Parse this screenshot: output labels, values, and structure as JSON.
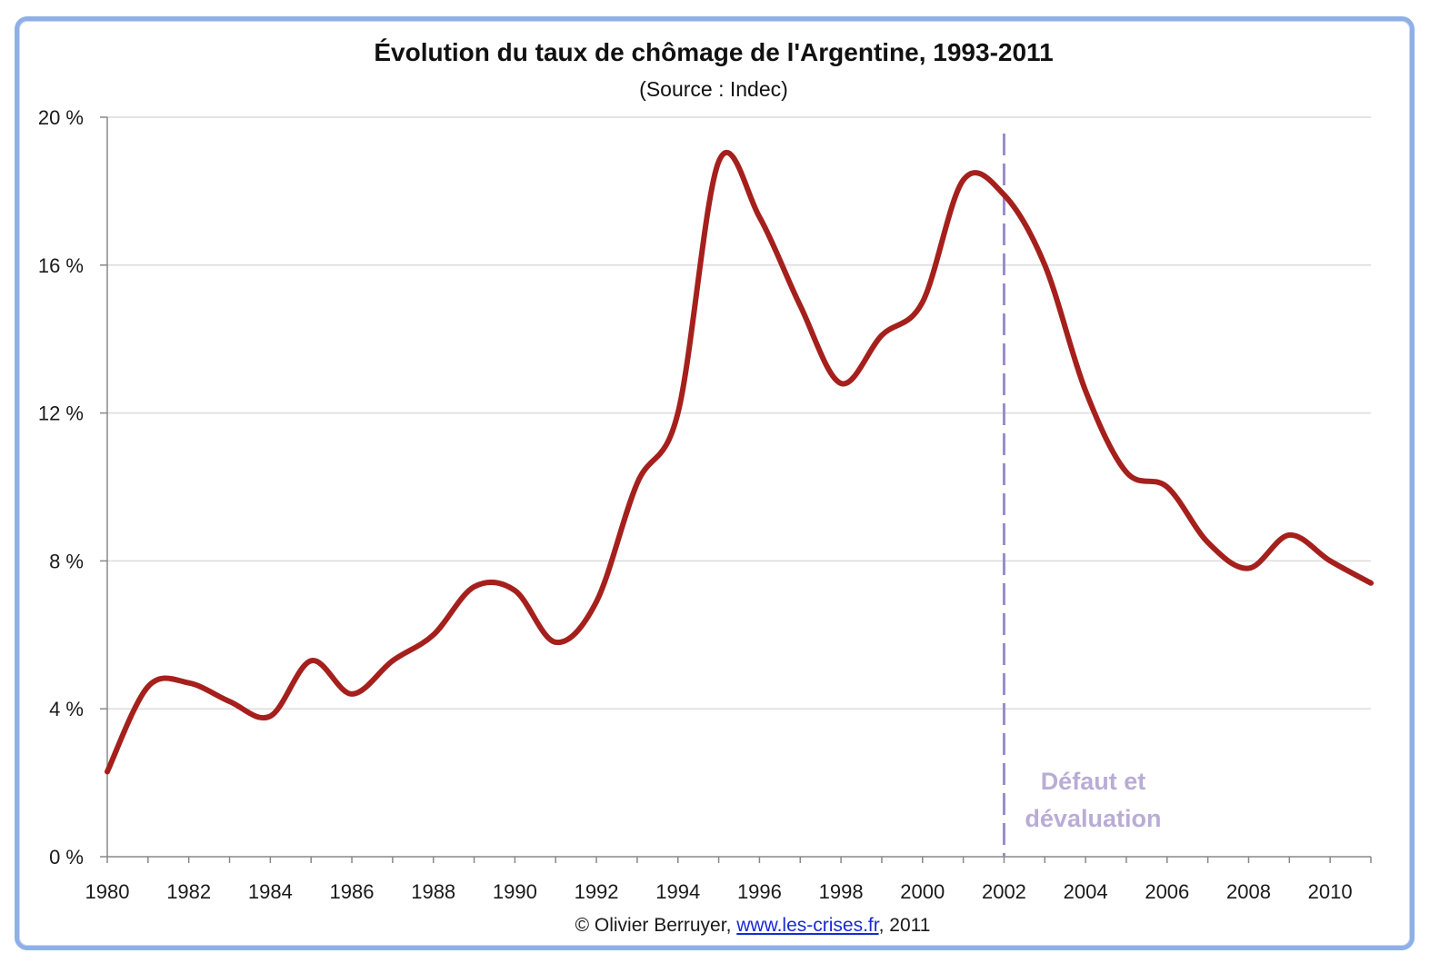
{
  "chart_data": {
    "type": "line",
    "title": "Évolution du taux de chômage de l'Argentine, 1993-2011",
    "subtitle": "(Source : Indec)",
    "xlabel": "",
    "ylabel": "",
    "xlim": [
      1980,
      2011
    ],
    "ylim": [
      0,
      20
    ],
    "x_ticks": [
      1980,
      1982,
      1984,
      1986,
      1988,
      1990,
      1992,
      1994,
      1996,
      1998,
      2000,
      2002,
      2004,
      2006,
      2008,
      2010
    ],
    "x_tick_labels": [
      "1980",
      "1982",
      "1984",
      "1986",
      "1988",
      "1990",
      "1992",
      "1994",
      "1996",
      "1998",
      "2000",
      "2002",
      "2004",
      "2006",
      "2008",
      "2010"
    ],
    "y_ticks": [
      0,
      4,
      8,
      12,
      16,
      20
    ],
    "y_tick_labels": [
      "0 %",
      "4 %",
      "8 %",
      "12 %",
      "16 %",
      "20 %"
    ],
    "grid": "horizontal",
    "series": [
      {
        "x": [
          1980,
          1981,
          1982,
          1983,
          1984,
          1985,
          1986,
          1987,
          1988,
          1989,
          1990,
          1991,
          1992,
          1993,
          1994,
          1995,
          1996,
          1997,
          1998,
          1999,
          2000,
          2001,
          2002,
          2003,
          2004,
          2005,
          2006,
          2007,
          2008,
          2009,
          2010,
          2011
        ],
        "values": [
          2.3,
          4.6,
          4.7,
          4.2,
          3.8,
          5.3,
          4.4,
          5.3,
          6.0,
          7.3,
          7.2,
          5.8,
          6.9,
          10.1,
          12.0,
          18.8,
          17.3,
          14.9,
          12.8,
          14.1,
          15.0,
          18.3,
          17.9,
          16.0,
          12.6,
          10.4,
          10.0,
          8.5,
          7.8,
          8.7,
          8.0,
          7.4
        ],
        "color": "#a5201c"
      }
    ],
    "annotations": [
      {
        "x": 2002,
        "style": "dashed-vertical-line",
        "color": "#9b8cc9",
        "text": [
          "Défaut et",
          "dévaluation"
        ]
      }
    ]
  },
  "credit": {
    "prefix": "© Olivier Berruyer, ",
    "link": "www.les-crises.fr",
    "suffix": ",  2011"
  }
}
